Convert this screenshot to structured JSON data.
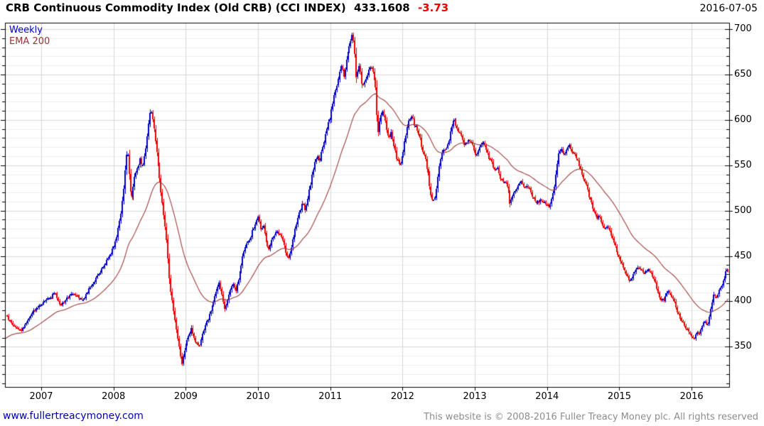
{
  "header": {
    "title": "CRB Continuous Commodity Index (Old CRB) (CCI INDEX)",
    "last_price": "433.1608",
    "change": "-3.73",
    "date": "2016-07-05"
  },
  "legend": {
    "timeframe": "Weekly",
    "ema": "EMA 200"
  },
  "footer": {
    "website": "www.fullertreacymoney.com",
    "copyright": "This website is © 2008-2016 Fuller Treacy Money plc. All rights reserved"
  },
  "colors": {
    "up_bar": "#0000cc",
    "down_bar": "#ee0000",
    "ema_line": "#9e3b3b",
    "ema_text": "#993333",
    "weekly_text": "#0000cc",
    "link_blue": "#0000bb",
    "change_red": "#ee0000",
    "copy_gray": "#8c8c8c",
    "grid_minor": "#ececec",
    "grid_major": "#d6d6d6",
    "axis_black": "#000000"
  },
  "chart_data": {
    "type": "bar",
    "subtype": "weekly-ohlc-candles",
    "title": "CRB Continuous Commodity Index (Old CRB) (CCI INDEX)",
    "last_close": 433.1608,
    "last_change": -3.73,
    "x_range": [
      2006.508,
      2016.52
    ],
    "y_range": [
      305.7,
      706.3
    ],
    "y_ticks": [
      350,
      400,
      450,
      500,
      550,
      600,
      650,
      700
    ],
    "y_minor_step": 10,
    "x_ticks": [
      2007,
      2008,
      2009,
      2010,
      2011,
      2012,
      2013,
      2014,
      2015,
      2016
    ],
    "grid": true,
    "legend_position": "top-left",
    "ema": {
      "label": "EMA 200",
      "span_weeks": 40,
      "seed": 358
    },
    "close_anchors": [
      [
        2006.51,
        385
      ],
      [
        2006.55,
        380
      ],
      [
        2006.62,
        373
      ],
      [
        2006.72,
        368
      ],
      [
        2006.8,
        377
      ],
      [
        2006.88,
        388
      ],
      [
        2006.96,
        394
      ],
      [
        2007.04,
        400
      ],
      [
        2007.12,
        404
      ],
      [
        2007.19,
        409
      ],
      [
        2007.27,
        396
      ],
      [
        2007.35,
        403
      ],
      [
        2007.42,
        410
      ],
      [
        2007.5,
        407
      ],
      [
        2007.58,
        401
      ],
      [
        2007.65,
        412
      ],
      [
        2007.73,
        422
      ],
      [
        2007.81,
        432
      ],
      [
        2007.88,
        442
      ],
      [
        2007.96,
        452
      ],
      [
        2008.04,
        470
      ],
      [
        2008.1,
        498
      ],
      [
        2008.14,
        525
      ],
      [
        2008.17,
        556
      ],
      [
        2008.19,
        568
      ],
      [
        2008.22,
        534
      ],
      [
        2008.25,
        512
      ],
      [
        2008.29,
        536
      ],
      [
        2008.33,
        548
      ],
      [
        2008.37,
        556
      ],
      [
        2008.4,
        548
      ],
      [
        2008.44,
        566
      ],
      [
        2008.48,
        592
      ],
      [
        2008.51,
        614
      ],
      [
        2008.53,
        608
      ],
      [
        2008.56,
        590
      ],
      [
        2008.6,
        562
      ],
      [
        2008.64,
        532
      ],
      [
        2008.67,
        512
      ],
      [
        2008.71,
        486
      ],
      [
        2008.74,
        462
      ],
      [
        2008.76,
        436
      ],
      [
        2008.79,
        410
      ],
      [
        2008.82,
        396
      ],
      [
        2008.85,
        378
      ],
      [
        2008.88,
        362
      ],
      [
        2008.91,
        348
      ],
      [
        2008.94,
        331
      ],
      [
        2008.97,
        342
      ],
      [
        2009.0,
        352
      ],
      [
        2009.04,
        361
      ],
      [
        2009.08,
        371
      ],
      [
        2009.12,
        358
      ],
      [
        2009.16,
        352
      ],
      [
        2009.19,
        350
      ],
      [
        2009.23,
        363
      ],
      [
        2009.27,
        373
      ],
      [
        2009.31,
        381
      ],
      [
        2009.35,
        391
      ],
      [
        2009.38,
        399
      ],
      [
        2009.42,
        409
      ],
      [
        2009.46,
        421
      ],
      [
        2009.5,
        408
      ],
      [
        2009.54,
        391
      ],
      [
        2009.58,
        403
      ],
      [
        2009.62,
        414
      ],
      [
        2009.65,
        420
      ],
      [
        2009.69,
        412
      ],
      [
        2009.73,
        424
      ],
      [
        2009.77,
        441
      ],
      [
        2009.81,
        458
      ],
      [
        2009.85,
        464
      ],
      [
        2009.88,
        467
      ],
      [
        2009.92,
        477
      ],
      [
        2009.96,
        485
      ],
      [
        2010.0,
        494
      ],
      [
        2010.04,
        479
      ],
      [
        2010.08,
        483
      ],
      [
        2010.12,
        463
      ],
      [
        2010.15,
        456
      ],
      [
        2010.19,
        468
      ],
      [
        2010.23,
        474
      ],
      [
        2010.27,
        477
      ],
      [
        2010.31,
        474
      ],
      [
        2010.35,
        466
      ],
      [
        2010.38,
        455
      ],
      [
        2010.42,
        447
      ],
      [
        2010.46,
        461
      ],
      [
        2010.5,
        474
      ],
      [
        2010.54,
        486
      ],
      [
        2010.58,
        499
      ],
      [
        2010.62,
        508
      ],
      [
        2010.65,
        501
      ],
      [
        2010.69,
        515
      ],
      [
        2010.73,
        531
      ],
      [
        2010.77,
        549
      ],
      [
        2010.81,
        560
      ],
      [
        2010.85,
        554
      ],
      [
        2010.88,
        566
      ],
      [
        2010.92,
        577
      ],
      [
        2010.96,
        591
      ],
      [
        2011.0,
        604
      ],
      [
        2011.04,
        622
      ],
      [
        2011.08,
        636
      ],
      [
        2011.12,
        651
      ],
      [
        2011.15,
        658
      ],
      [
        2011.19,
        647
      ],
      [
        2011.23,
        669
      ],
      [
        2011.27,
        686
      ],
      [
        2011.3,
        693
      ],
      [
        2011.33,
        685
      ],
      [
        2011.36,
        646
      ],
      [
        2011.4,
        661
      ],
      [
        2011.44,
        637
      ],
      [
        2011.48,
        641
      ],
      [
        2011.52,
        653
      ],
      [
        2011.56,
        661
      ],
      [
        2011.6,
        648
      ],
      [
        2011.63,
        636
      ],
      [
        2011.66,
        582
      ],
      [
        2011.69,
        604
      ],
      [
        2011.73,
        611
      ],
      [
        2011.77,
        593
      ],
      [
        2011.81,
        577
      ],
      [
        2011.84,
        589
      ],
      [
        2011.88,
        569
      ],
      [
        2011.92,
        557
      ],
      [
        2011.96,
        549
      ],
      [
        2012.0,
        561
      ],
      [
        2012.04,
        581
      ],
      [
        2012.08,
        597
      ],
      [
        2012.12,
        605
      ],
      [
        2012.15,
        598
      ],
      [
        2012.19,
        591
      ],
      [
        2012.23,
        583
      ],
      [
        2012.27,
        566
      ],
      [
        2012.31,
        558
      ],
      [
        2012.35,
        541
      ],
      [
        2012.38,
        523
      ],
      [
        2012.42,
        509
      ],
      [
        2012.45,
        513
      ],
      [
        2012.48,
        531
      ],
      [
        2012.52,
        556
      ],
      [
        2012.56,
        566
      ],
      [
        2012.6,
        569
      ],
      [
        2012.63,
        573
      ],
      [
        2012.67,
        589
      ],
      [
        2012.71,
        601
      ],
      [
        2012.75,
        591
      ],
      [
        2012.79,
        586
      ],
      [
        2012.83,
        581
      ],
      [
        2012.86,
        571
      ],
      [
        2012.9,
        577
      ],
      [
        2012.94,
        579
      ],
      [
        2012.98,
        570
      ],
      [
        2013.01,
        559
      ],
      [
        2013.04,
        567
      ],
      [
        2013.08,
        573
      ],
      [
        2013.12,
        575
      ],
      [
        2013.15,
        570
      ],
      [
        2013.19,
        559
      ],
      [
        2013.23,
        553
      ],
      [
        2013.27,
        545
      ],
      [
        2013.31,
        549
      ],
      [
        2013.35,
        537
      ],
      [
        2013.38,
        532
      ],
      [
        2013.42,
        534
      ],
      [
        2013.46,
        521
      ],
      [
        2013.49,
        507
      ],
      [
        2013.53,
        517
      ],
      [
        2013.57,
        523
      ],
      [
        2013.61,
        529
      ],
      [
        2013.64,
        531
      ],
      [
        2013.68,
        528
      ],
      [
        2013.72,
        526
      ],
      [
        2013.76,
        523
      ],
      [
        2013.8,
        514
      ],
      [
        2013.84,
        510
      ],
      [
        2013.88,
        509
      ],
      [
        2013.92,
        512
      ],
      [
        2013.96,
        509
      ],
      [
        2014.0,
        506
      ],
      [
        2014.03,
        503
      ],
      [
        2014.07,
        514
      ],
      [
        2014.11,
        532
      ],
      [
        2014.14,
        554
      ],
      [
        2014.16,
        566
      ],
      [
        2014.2,
        567
      ],
      [
        2014.24,
        561
      ],
      [
        2014.28,
        570
      ],
      [
        2014.31,
        572
      ],
      [
        2014.35,
        565
      ],
      [
        2014.39,
        560
      ],
      [
        2014.43,
        554
      ],
      [
        2014.47,
        544
      ],
      [
        2014.51,
        534
      ],
      [
        2014.55,
        526
      ],
      [
        2014.59,
        512
      ],
      [
        2014.63,
        505
      ],
      [
        2014.66,
        497
      ],
      [
        2014.7,
        492
      ],
      [
        2014.72,
        495
      ],
      [
        2014.76,
        487
      ],
      [
        2014.8,
        479
      ],
      [
        2014.84,
        483
      ],
      [
        2014.87,
        476
      ],
      [
        2014.91,
        467
      ],
      [
        2014.95,
        458
      ],
      [
        2014.99,
        450
      ],
      [
        2015.03,
        442
      ],
      [
        2015.07,
        436
      ],
      [
        2015.11,
        428
      ],
      [
        2015.14,
        421
      ],
      [
        2015.18,
        428
      ],
      [
        2015.22,
        433
      ],
      [
        2015.26,
        438
      ],
      [
        2015.3,
        435
      ],
      [
        2015.34,
        432
      ],
      [
        2015.38,
        434
      ],
      [
        2015.42,
        434
      ],
      [
        2015.46,
        428
      ],
      [
        2015.5,
        420
      ],
      [
        2015.54,
        408
      ],
      [
        2015.57,
        403
      ],
      [
        2015.61,
        400
      ],
      [
        2015.64,
        407
      ],
      [
        2015.68,
        411
      ],
      [
        2015.72,
        405
      ],
      [
        2015.76,
        403
      ],
      [
        2015.8,
        389
      ],
      [
        2015.84,
        383
      ],
      [
        2015.88,
        376
      ],
      [
        2015.91,
        372
      ],
      [
        2015.95,
        368
      ],
      [
        2015.99,
        362
      ],
      [
        2016.03,
        357
      ],
      [
        2016.07,
        366
      ],
      [
        2016.11,
        364
      ],
      [
        2016.14,
        371
      ],
      [
        2016.18,
        378
      ],
      [
        2016.22,
        374
      ],
      [
        2016.26,
        389
      ],
      [
        2016.3,
        407
      ],
      [
        2016.34,
        404
      ],
      [
        2016.38,
        412
      ],
      [
        2016.42,
        418
      ],
      [
        2016.46,
        428
      ],
      [
        2016.49,
        436.9
      ],
      [
        2016.505,
        433.1608
      ]
    ]
  }
}
